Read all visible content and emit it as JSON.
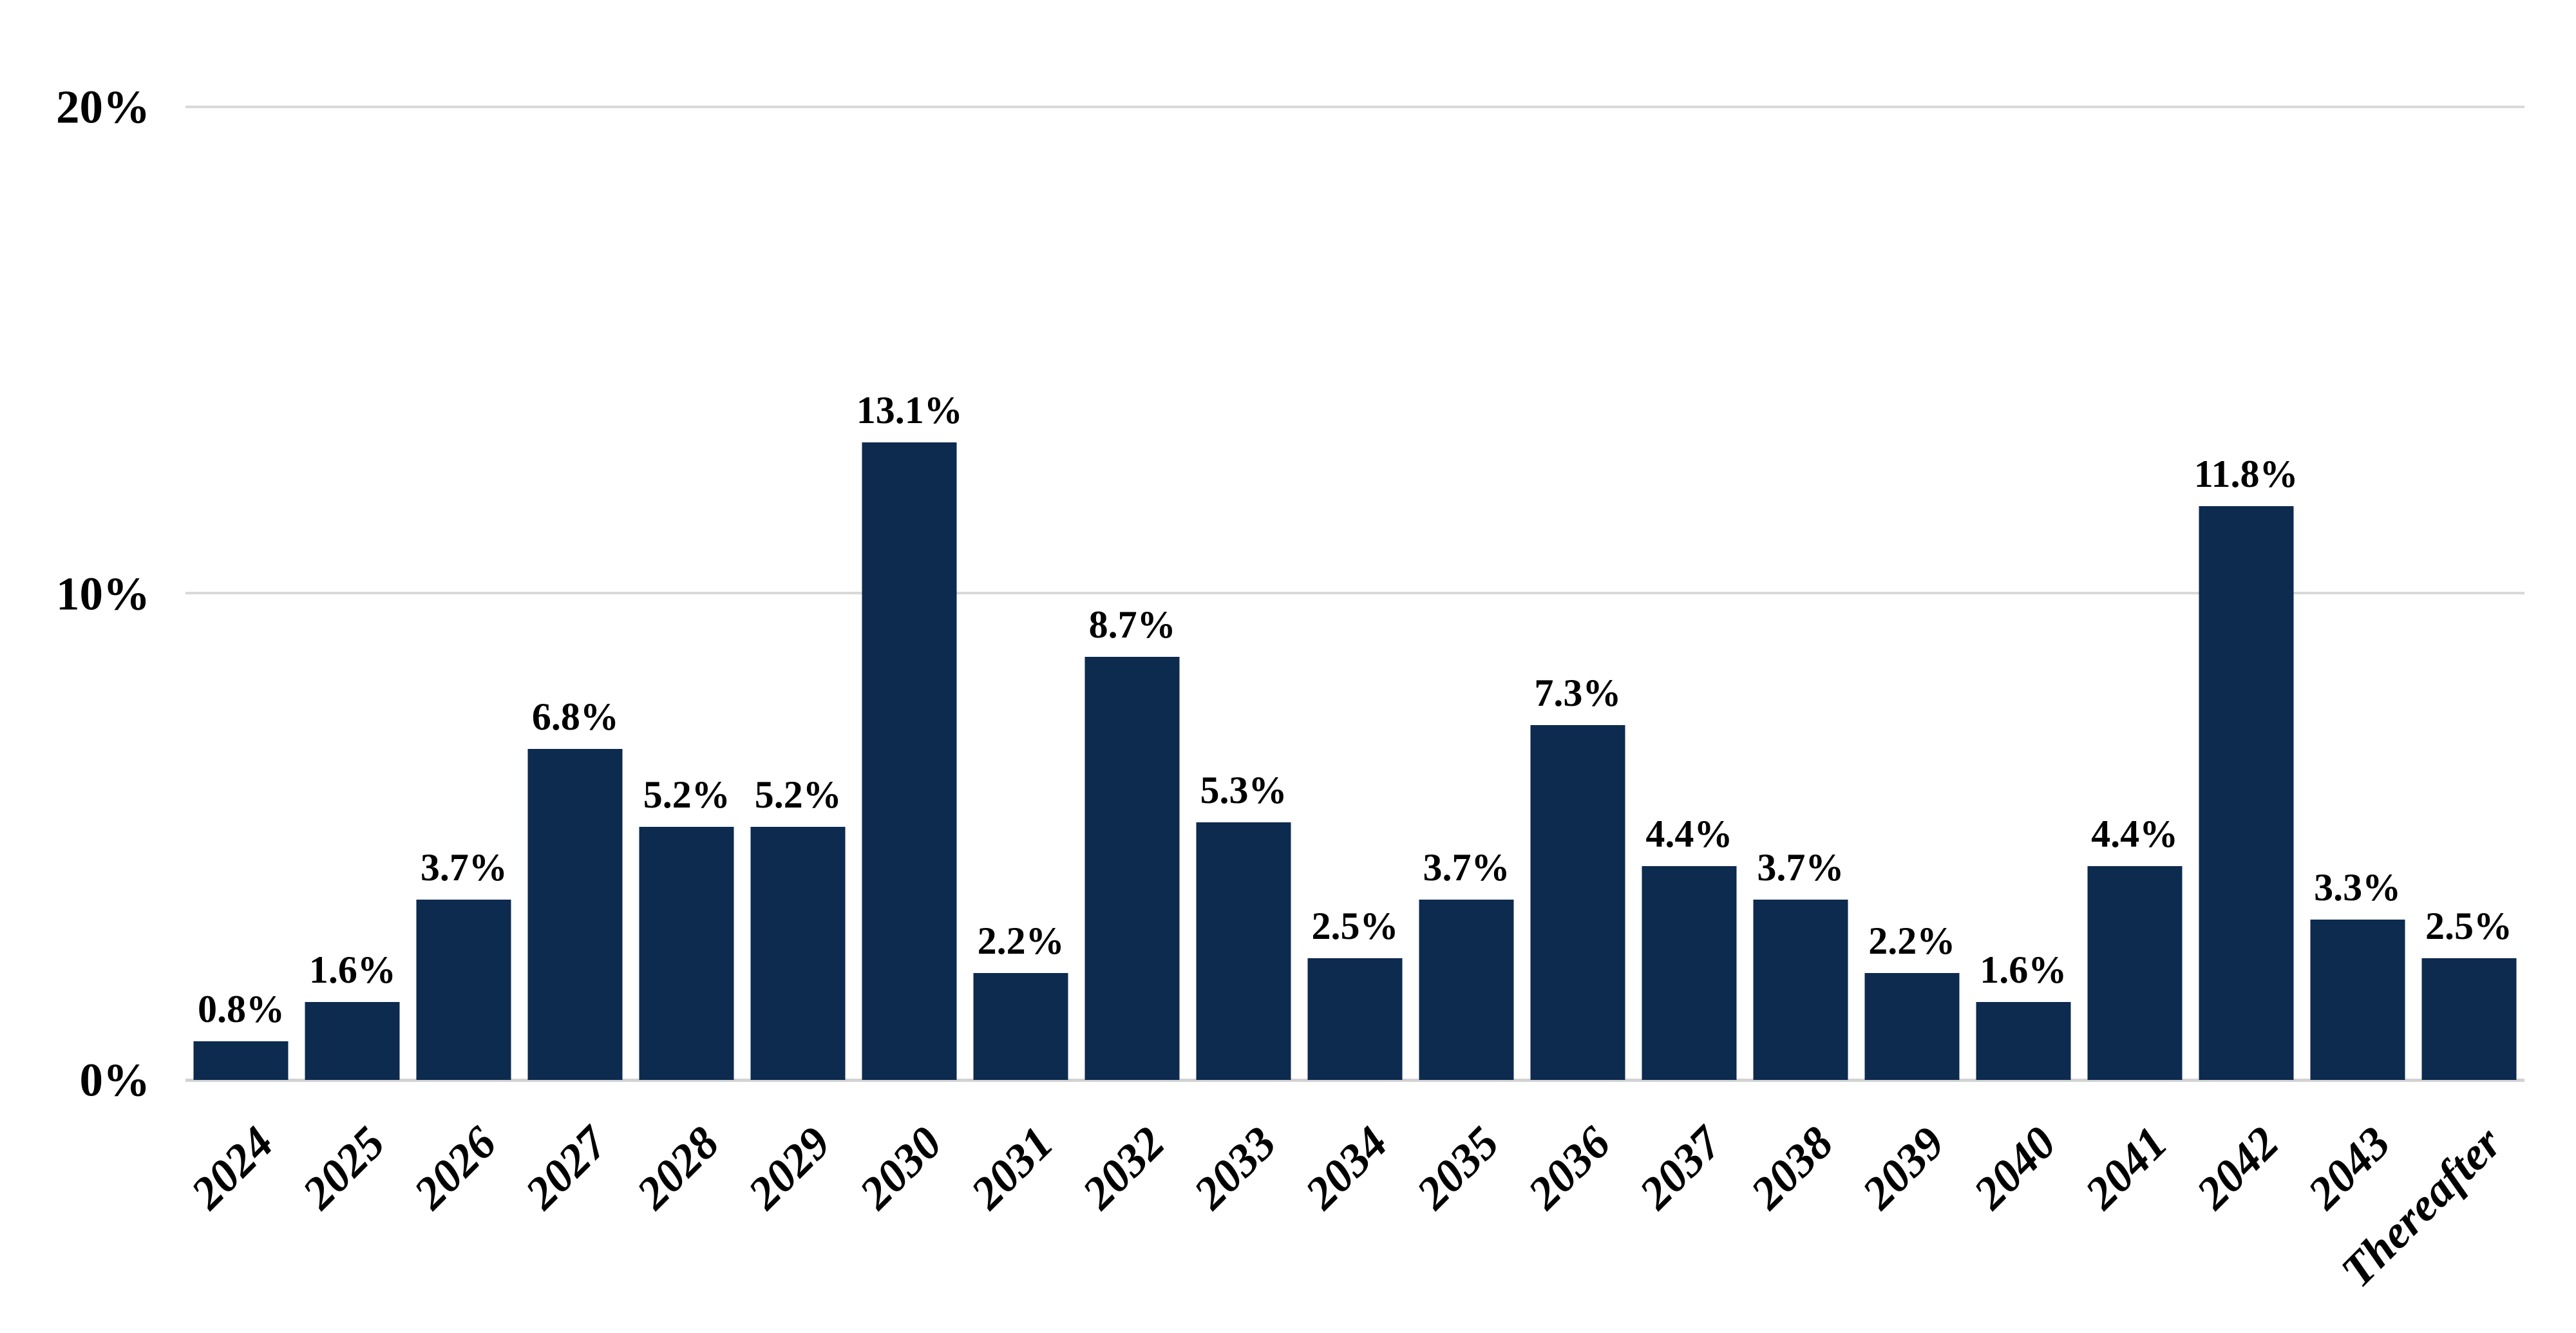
{
  "chart_data": {
    "type": "bar",
    "title": "",
    "xlabel": "",
    "ylabel": "",
    "categories": [
      "2024",
      "2025",
      "2026",
      "2027",
      "2028",
      "2029",
      "2030",
      "2031",
      "2032",
      "2033",
      "2034",
      "2035",
      "2036",
      "2037",
      "2038",
      "2039",
      "2040",
      "2041",
      "2042",
      "2043",
      "Thereafter"
    ],
    "values": [
      0.8,
      1.6,
      3.7,
      6.8,
      5.2,
      5.2,
      13.1,
      2.2,
      8.7,
      5.3,
      2.5,
      3.7,
      7.3,
      4.4,
      3.7,
      2.2,
      1.6,
      4.4,
      11.8,
      3.3,
      2.5
    ],
    "value_labels": [
      "0.8%",
      "1.6%",
      "3.7%",
      "6.8%",
      "5.2%",
      "5.2%",
      "13.1%",
      "2.2%",
      "8.7%",
      "5.3%",
      "2.5%",
      "3.7%",
      "7.3%",
      "4.4%",
      "3.7%",
      "2.2%",
      "1.6%",
      "4.4%",
      "11.8%",
      "3.3%",
      "2.5%"
    ],
    "y_ticks": {
      "top": "20%",
      "middle": "10%",
      "bottom": "0%"
    },
    "ylim": [
      0,
      20
    ],
    "grid": "horizontal lines at 0%, 10%, 20%",
    "legend": "none",
    "bar_color": "#0D2A4F",
    "gridline_color": "#D9D9D9",
    "axis_line_color": "#D2D2D2",
    "label_color": "#000000"
  }
}
